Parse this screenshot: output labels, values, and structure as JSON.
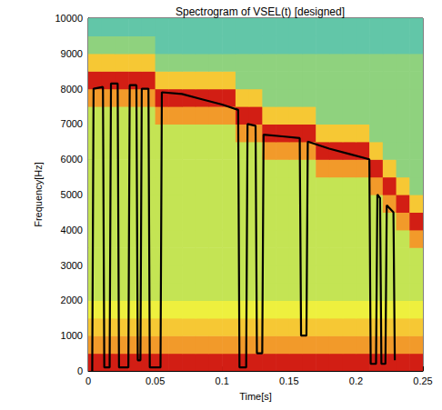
{
  "chart_data": {
    "type": "spectrogram",
    "title": "Spectrogram of VSEL(t) [designed]",
    "x_label": "Time[s]",
    "y_label": "Frequency[Hz]",
    "xlim": [
      0,
      0.25
    ],
    "xticks": [
      0,
      0.05,
      0.1,
      0.15,
      0.2,
      0.25
    ],
    "ylim": [
      0,
      10000
    ],
    "yticks": [
      0,
      1000,
      2000,
      3000,
      4000,
      5000,
      6000,
      7000,
      8000,
      9000,
      10000
    ],
    "grid": false,
    "cells": {
      "x_edges": [
        0,
        0.01,
        0.02,
        0.03,
        0.04,
        0.05,
        0.06,
        0.07,
        0.08,
        0.09,
        0.1,
        0.11,
        0.12,
        0.13,
        0.14,
        0.15,
        0.16,
        0.17,
        0.18,
        0.19,
        0.2,
        0.21,
        0.22,
        0.23,
        0.24,
        0.25
      ],
      "y_edges": [
        0,
        500,
        1000,
        1500,
        2000,
        2500,
        3000,
        3500,
        4000,
        4500,
        5000,
        5500,
        6000,
        6500,
        7000,
        7500,
        8000,
        8500,
        9000,
        9500,
        10000
      ],
      "zlim": [
        0,
        8
      ],
      "colors": [
        "#3fb8c8",
        "#62c6a8",
        "#8fd27e",
        "#c4e454",
        "#eef03e",
        "#f6c834",
        "#f29a2a",
        "#e6601e",
        "#d21e14"
      ],
      "z": [
        [
          8,
          8,
          8,
          8,
          8,
          8,
          8,
          8,
          8,
          8,
          8,
          8,
          8,
          8,
          8,
          8,
          8,
          8,
          8,
          8,
          8,
          8,
          8,
          8,
          8
        ],
        [
          6,
          6,
          6,
          6,
          6,
          6,
          6,
          6,
          6,
          6,
          6,
          6,
          6,
          6,
          6,
          6,
          6,
          6,
          6,
          6,
          6,
          6,
          6,
          6,
          6
        ],
        [
          5,
          5,
          5,
          5,
          5,
          5,
          5,
          5,
          5,
          5,
          5,
          5,
          5,
          5,
          5,
          5,
          5,
          5,
          5,
          5,
          5,
          5,
          5,
          5,
          5
        ],
        [
          4,
          4,
          4,
          4,
          4,
          4,
          4,
          4,
          4,
          4,
          4,
          4,
          4,
          4,
          4,
          4,
          4,
          4,
          4,
          4,
          4,
          4,
          4,
          4,
          4
        ],
        [
          3,
          3,
          3,
          3,
          3,
          3,
          3,
          3,
          3,
          3,
          3,
          3,
          3,
          3,
          3,
          3,
          3,
          3,
          3,
          3,
          3,
          3,
          3,
          3,
          3
        ],
        [
          3,
          3,
          3,
          3,
          3,
          3,
          3,
          3,
          3,
          3,
          3,
          3,
          3,
          3,
          3,
          3,
          3,
          3,
          3,
          3,
          3,
          3,
          3,
          3,
          3
        ],
        [
          3,
          3,
          3,
          3,
          3,
          3,
          3,
          3,
          3,
          3,
          3,
          3,
          3,
          3,
          3,
          3,
          3,
          3,
          3,
          3,
          3,
          3,
          3,
          3,
          3
        ],
        [
          3,
          3,
          3,
          3,
          3,
          3,
          3,
          3,
          3,
          3,
          3,
          3,
          3,
          3,
          3,
          3,
          3,
          3,
          3,
          3,
          3,
          3,
          3,
          3,
          6
        ],
        [
          3,
          3,
          3,
          3,
          3,
          3,
          3,
          3,
          3,
          3,
          3,
          3,
          3,
          3,
          3,
          3,
          3,
          3,
          3,
          3,
          3,
          3,
          3,
          6,
          8
        ],
        [
          3,
          3,
          3,
          3,
          3,
          3,
          3,
          3,
          3,
          3,
          3,
          3,
          3,
          3,
          3,
          3,
          3,
          3,
          3,
          3,
          3,
          3,
          6,
          8,
          5
        ],
        [
          3,
          3,
          3,
          3,
          3,
          3,
          3,
          3,
          3,
          3,
          3,
          3,
          3,
          3,
          3,
          3,
          3,
          3,
          3,
          3,
          3,
          6,
          8,
          5,
          2
        ],
        [
          3,
          3,
          3,
          3,
          3,
          3,
          3,
          3,
          3,
          3,
          3,
          3,
          3,
          3,
          3,
          3,
          3,
          6,
          6,
          6,
          6,
          8,
          5,
          2,
          2
        ],
        [
          3,
          3,
          3,
          3,
          3,
          3,
          3,
          3,
          3,
          3,
          3,
          3,
          3,
          6,
          6,
          6,
          6,
          8,
          8,
          8,
          8,
          5,
          2,
          2,
          2
        ],
        [
          3,
          3,
          3,
          3,
          3,
          3,
          3,
          3,
          3,
          3,
          3,
          6,
          6,
          8,
          8,
          8,
          8,
          5,
          5,
          5,
          5,
          2,
          2,
          2,
          2
        ],
        [
          3,
          3,
          3,
          3,
          3,
          6,
          6,
          6,
          6,
          6,
          6,
          8,
          8,
          5,
          5,
          5,
          5,
          2,
          2,
          2,
          2,
          2,
          2,
          2,
          2
        ],
        [
          6,
          6,
          6,
          6,
          6,
          8,
          8,
          8,
          8,
          8,
          8,
          5,
          5,
          2,
          2,
          2,
          2,
          2,
          2,
          2,
          2,
          2,
          2,
          2,
          2
        ],
        [
          8,
          8,
          8,
          8,
          8,
          5,
          5,
          5,
          5,
          5,
          5,
          2,
          2,
          2,
          2,
          2,
          2,
          2,
          2,
          2,
          2,
          2,
          2,
          2,
          2
        ],
        [
          5,
          5,
          5,
          5,
          5,
          2,
          2,
          2,
          2,
          2,
          2,
          2,
          2,
          2,
          2,
          2,
          2,
          2,
          2,
          2,
          2,
          2,
          2,
          2,
          2
        ],
        [
          2,
          2,
          2,
          2,
          2,
          1,
          1,
          1,
          1,
          1,
          1,
          1,
          1,
          1,
          1,
          1,
          1,
          1,
          1,
          1,
          1,
          1,
          1,
          1,
          1
        ],
        [
          1,
          1,
          1,
          1,
          1,
          1,
          1,
          1,
          1,
          1,
          1,
          1,
          1,
          1,
          1,
          1,
          1,
          1,
          1,
          1,
          1,
          1,
          1,
          1,
          1
        ]
      ]
    },
    "series": [
      {
        "type": "line",
        "color": "#000000",
        "line_style": "solid",
        "x": [
          0.003,
          0.004,
          0.011,
          0.012,
          0.016,
          0.017,
          0.022,
          0.023,
          0.03,
          0.031,
          0.036,
          0.037,
          0.039,
          0.04,
          0.045,
          0.046,
          0.054,
          0.055,
          0.07,
          0.085,
          0.1,
          0.112,
          0.113,
          0.118,
          0.119,
          0.125,
          0.126,
          0.13,
          0.131,
          0.145,
          0.158,
          0.159,
          0.163,
          0.164,
          0.18,
          0.195,
          0.21,
          0.211,
          0.215,
          0.216,
          0.218,
          0.219,
          0.222,
          0.223,
          0.228,
          0.229
        ],
        "values": [
          0,
          8000,
          8050,
          100,
          100,
          8150,
          8150,
          100,
          100,
          8100,
          8100,
          300,
          300,
          8000,
          8000,
          100,
          100,
          7900,
          7850,
          7700,
          7550,
          7400,
          100,
          100,
          7000,
          6950,
          500,
          500,
          6700,
          6650,
          6600,
          1000,
          1000,
          6500,
          6300,
          6150,
          6000,
          200,
          200,
          5000,
          4900,
          200,
          200,
          4700,
          4500,
          300
        ]
      }
    ]
  }
}
